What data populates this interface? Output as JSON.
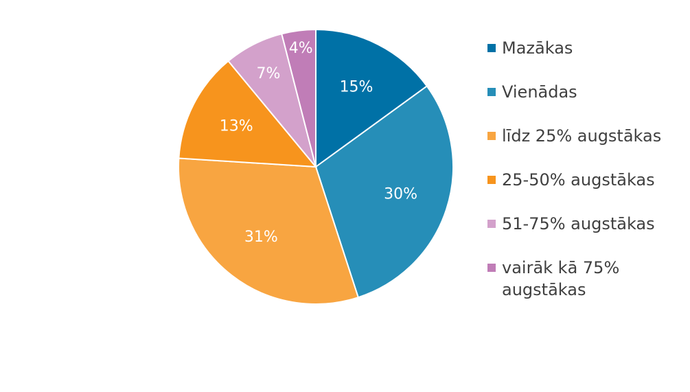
{
  "chart_data": {
    "type": "pie",
    "title": "",
    "legend_position": "right",
    "slices": [
      {
        "label": "Mazākas",
        "value": 15,
        "display": "15%",
        "color": "#0071A6"
      },
      {
        "label": "Vienādas",
        "value": 30,
        "display": "30%",
        "color": "#268EB8"
      },
      {
        "label": "līdz 25% augstākas",
        "value": 31,
        "display": "31%",
        "color": "#F8A541"
      },
      {
        "label": "25-50% augstākas",
        "value": 13,
        "display": "13%",
        "color": "#F7941D"
      },
      {
        "label": "51-75% augstākas",
        "value": 7,
        "display": "7%",
        "color": "#D3A1CB"
      },
      {
        "label": "vairāk kā 75% augstākas",
        "legend_lines": [
          "vairāk kā 75%",
          "augstākas"
        ],
        "value": 4,
        "display": "4%",
        "color": "#C07DB7"
      }
    ]
  }
}
